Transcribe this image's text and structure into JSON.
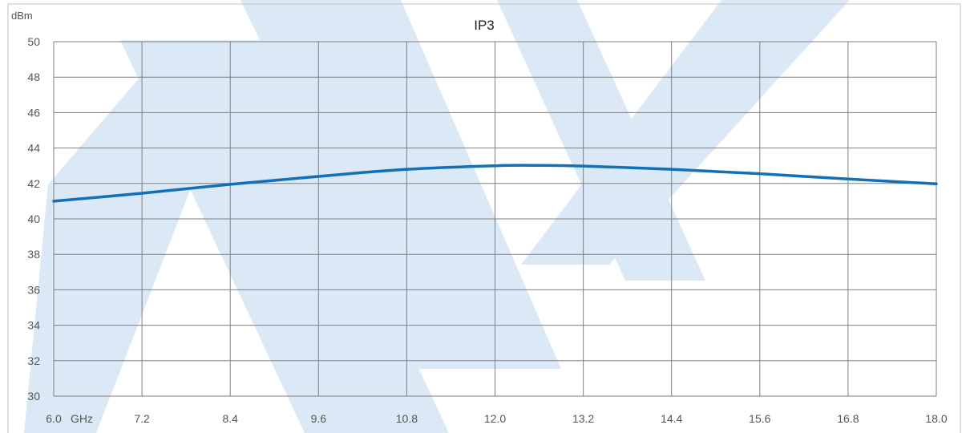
{
  "chart_data": {
    "type": "line",
    "title": "IP3",
    "ylabel": "dBm",
    "xunit": "GHz",
    "xlim": [
      6.0,
      18.0
    ],
    "ylim": [
      30,
      50
    ],
    "x_ticks": [
      "6.0",
      "7.2",
      "8.4",
      "9.6",
      "10.8",
      "12.0",
      "13.2",
      "14.4",
      "15.6",
      "16.8",
      "18.0"
    ],
    "y_ticks": [
      "30",
      "32",
      "34",
      "36",
      "38",
      "40",
      "42",
      "44",
      "46",
      "48",
      "50"
    ],
    "grid": true,
    "series": [
      {
        "color": "#1070b8",
        "x": [
          6.0,
          7.2,
          8.4,
          9.6,
          10.8,
          12.0,
          12.6,
          13.2,
          14.4,
          15.6,
          16.8,
          18.0
        ],
        "y": [
          41.0,
          41.45,
          41.95,
          42.4,
          42.8,
          43.0,
          43.02,
          42.98,
          42.8,
          42.55,
          42.25,
          41.98
        ]
      }
    ]
  }
}
